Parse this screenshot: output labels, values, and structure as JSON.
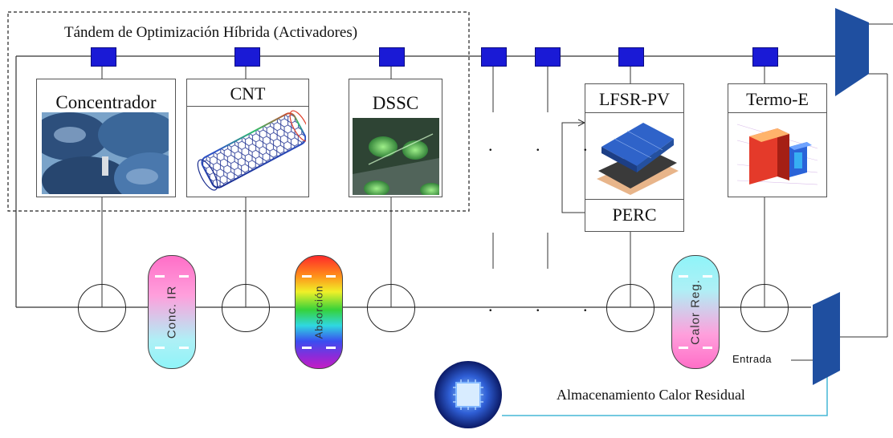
{
  "title": "Tándem de Optimización Híbrida (Activadores)",
  "modules": [
    {
      "label": "Concentrador",
      "icon": "solar-concentrator-image"
    },
    {
      "label": "CNT",
      "icon": "carbon-nanotube-image"
    },
    {
      "label": "DSSC",
      "icon": "dye-sensitized-cell-image"
    },
    {
      "label": "LFSR-PV",
      "sublabel": "PERC",
      "icon": "solar-panel-image"
    },
    {
      "label": "Termo-E",
      "icon": "thermoelectric-image"
    }
  ],
  "filters": [
    {
      "label": "Conc. IR",
      "colors": [
        "#ff6ec7",
        "#8ff4f8"
      ]
    },
    {
      "label": "Absorción",
      "colors": [
        "rainbow"
      ]
    },
    {
      "label": "Calor Reg.",
      "colors": [
        "#ff6ec7",
        "#8ff4f8"
      ]
    }
  ],
  "ellipsis": ". . .",
  "entrada_label": "Entrada",
  "storage_label": "Almacenamiento  Calor Residual",
  "colors": {
    "node": "#1a1ad6",
    "trapezoid": "#1f4fa0",
    "feed_line": "#45b7d6"
  }
}
